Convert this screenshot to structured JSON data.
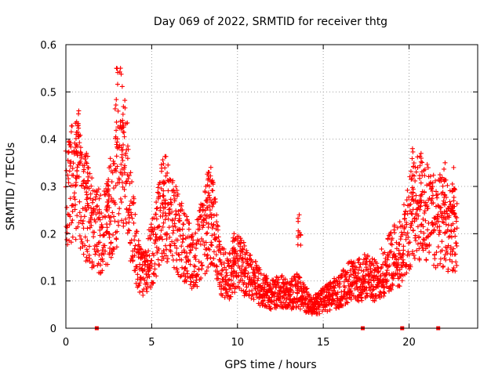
{
  "chart_data": {
    "type": "scatter",
    "title": "Day 069 of 2022, SRMTID for receiver thtg",
    "xlabel": "GPS time / hours",
    "ylabel": "SRMTID / TECUs",
    "xlim": [
      0,
      24
    ],
    "ylim": [
      0,
      0.6
    ],
    "x_ticks": [
      0,
      5,
      10,
      15,
      20
    ],
    "y_ticks": [
      0,
      0.1,
      0.2,
      0.3,
      0.4,
      0.5,
      0.6
    ],
    "x_tick_labels": [
      "0",
      "5",
      "10",
      "15",
      "20"
    ],
    "y_tick_labels": [
      "0",
      "0.1",
      "0.2",
      "0.3",
      "0.4",
      "0.5",
      "0.6"
    ],
    "grid": true,
    "marker": "plus",
    "marker_color": "#ff0000",
    "series": [
      {
        "name": "SRMTID",
        "trend": {
          "x": [
            0,
            0.4,
            0.7,
            1.0,
            1.5,
            2.0,
            2.5,
            2.9,
            3.2,
            3.6,
            3.9,
            4.2,
            4.5,
            4.8,
            5.2,
            5.7,
            6.0,
            6.5,
            7.0,
            7.5,
            8.0,
            8.5,
            9.0,
            9.5,
            10.0,
            10.5,
            11.0,
            11.5,
            12.0,
            12.5,
            13.0,
            13.5,
            14.0,
            14.5,
            15.0,
            15.5,
            16.0,
            16.5,
            17.0,
            17.5,
            18.0,
            18.5,
            19.0,
            19.5,
            20.0,
            20.5,
            21.0,
            21.5,
            22.0,
            22.5,
            22.8
          ],
          "y": [
            0.28,
            0.31,
            0.3,
            0.26,
            0.22,
            0.2,
            0.24,
            0.28,
            0.4,
            0.3,
            0.22,
            0.14,
            0.11,
            0.14,
            0.18,
            0.26,
            0.24,
            0.2,
            0.17,
            0.14,
            0.2,
            0.24,
            0.12,
            0.11,
            0.14,
            0.12,
            0.1,
            0.08,
            0.07,
            0.08,
            0.07,
            0.08,
            0.06,
            0.05,
            0.06,
            0.07,
            0.08,
            0.1,
            0.1,
            0.11,
            0.1,
            0.12,
            0.15,
            0.16,
            0.22,
            0.26,
            0.24,
            0.23,
            0.22,
            0.2,
            0.22
          ]
        },
        "spikes": [
          {
            "x": 1.2,
            "y": 0.37
          },
          {
            "x": 0.75,
            "y": 0.46
          },
          {
            "x": 0.6,
            "y": 0.41
          },
          {
            "x": 2.45,
            "y": 0.31
          },
          {
            "x": 2.95,
            "y": 0.55
          },
          {
            "x": 3.3,
            "y": 0.44
          },
          {
            "x": 5.7,
            "y": 0.31
          },
          {
            "x": 8.3,
            "y": 0.33
          },
          {
            "x": 8.5,
            "y": 0.31
          },
          {
            "x": 9.8,
            "y": 0.2
          },
          {
            "x": 13.6,
            "y": 0.24
          },
          {
            "x": 20.2,
            "y": 0.38
          },
          {
            "x": 20.7,
            "y": 0.37
          },
          {
            "x": 22.1,
            "y": 0.35
          },
          {
            "x": 22.6,
            "y": 0.34
          }
        ],
        "zero_markers_x": [
          1.8,
          17.3,
          19.6,
          21.7
        ]
      }
    ]
  }
}
